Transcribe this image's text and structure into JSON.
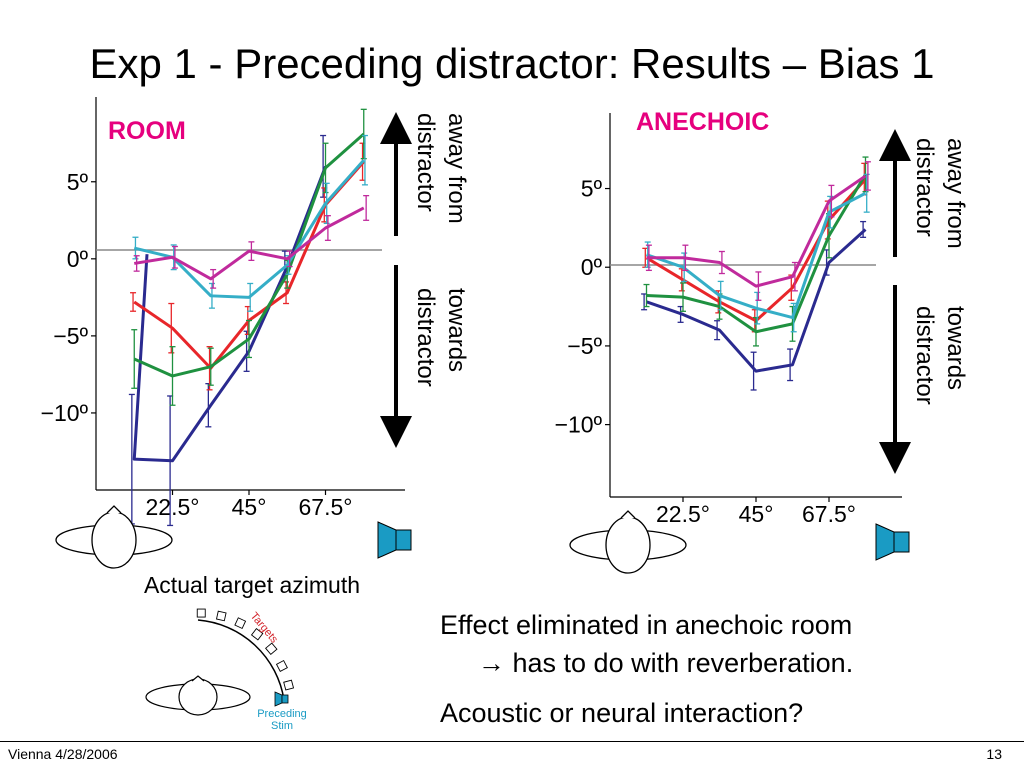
{
  "slide": {
    "title": "Exp 1 - Preceding distractor: Results – Bias 1",
    "bullets": [
      "Effect eliminated in anechoic room",
      "→ has to do with reverberation.",
      "Acoustic or neural interaction?"
    ],
    "footer_left": "Vienna 4/28/2006",
    "footer_right": "13"
  },
  "annotations": {
    "away": [
      "away from",
      "distractor"
    ],
    "towards": [
      "towards",
      "distractor"
    ],
    "xaxis_caption": "Actual target azimuth",
    "inset_targets": "Targets",
    "inset_preceding": [
      "Preceding",
      "Stim"
    ]
  },
  "colors": {
    "series": [
      "#2a2a8f",
      "#e8262a",
      "#1f9140",
      "#35aec7",
      "#c02a9c"
    ],
    "panel_title": "#e6007e",
    "speaker": "#1a9bc4",
    "targets_label": "#d2232a"
  },
  "chart_data": [
    {
      "type": "line",
      "title": "ROOM",
      "xlabel": "Actual target azimuth",
      "ylabel": "",
      "x_ticks": [
        22.5,
        45,
        67.5
      ],
      "x_tick_labels": [
        "22.5°",
        "45°",
        "67.5°"
      ],
      "y_ticks": [
        5,
        0,
        -5,
        -10
      ],
      "y_tick_labels": [
        "5º",
        "0º",
        "−5º",
        "−10º"
      ],
      "xlim": [
        0,
        90
      ],
      "ylim": [
        -15,
        10.5
      ],
      "series": [
        {
          "x": [
            15,
            11.25,
            22.5,
            33.75,
            45,
            56.25,
            67.5
          ],
          "y": [
            0.3,
            -13,
            -13.1,
            -9.5,
            -6,
            -0.5,
            6
          ],
          "err": [
            0,
            4.2,
            4.2,
            1.4,
            1.3,
            1,
            2
          ]
        },
        {
          "x": [
            11.25,
            22.5,
            33.75,
            45,
            56.25,
            67.5,
            78.75
          ],
          "y": [
            -2.8,
            -4.5,
            -7.1,
            -4,
            -2.2,
            3.5,
            6.3
          ],
          "err": [
            0.6,
            1.6,
            1.4,
            0.9,
            0.7,
            1.1,
            1.2
          ]
        },
        {
          "x": [
            11.25,
            22.5,
            33.75,
            45,
            56.25,
            67.5,
            78.75
          ],
          "y": [
            -6.5,
            -7.6,
            -7,
            -5.2,
            -1,
            5.9,
            8.1
          ],
          "err": [
            1.9,
            1.9,
            1.2,
            1.2,
            0.9,
            1.6,
            1.6
          ]
        },
        {
          "x": [
            11.25,
            22.5,
            33.75,
            45,
            56.25,
            67.5,
            78.75
          ],
          "y": [
            0.7,
            0.1,
            -2.4,
            -2.5,
            -0.4,
            3.6,
            6.4
          ],
          "err": [
            0.7,
            0.8,
            0.8,
            0.9,
            0.6,
            1.3,
            1.6
          ]
        },
        {
          "x": [
            11.25,
            22.5,
            33.75,
            45,
            56.25,
            67.5,
            78.75
          ],
          "y": [
            -0.3,
            0.1,
            -1.3,
            0.5,
            0,
            2,
            3.3
          ],
          "err": [
            0.5,
            0.7,
            0.6,
            0.6,
            0.5,
            0.8,
            0.8
          ]
        }
      ]
    },
    {
      "type": "line",
      "title": "ANECHOIC",
      "xlabel": "",
      "ylabel": "",
      "x_ticks": [
        22.5,
        45,
        67.5
      ],
      "x_tick_labels": [
        "22.5°",
        "45°",
        "67.5°"
      ],
      "y_ticks": [
        5,
        0,
        -5,
        -10
      ],
      "y_tick_labels": [
        "5º",
        "0º",
        "−5º",
        "−10º"
      ],
      "xlim": [
        0,
        90
      ],
      "ylim": [
        -14.6,
        9.8
      ],
      "series": [
        {
          "x": [
            11.25,
            22.5,
            33.75,
            45,
            56.25,
            67.5,
            78.75
          ],
          "y": [
            -2.2,
            -3,
            -4,
            -6.6,
            -6.2,
            0.3,
            2.4
          ],
          "err": [
            0.5,
            0.5,
            0.6,
            1.2,
            1,
            0.8,
            0.5
          ]
        },
        {
          "x": [
            11.25,
            22.5,
            33.75,
            45,
            56.25,
            67.5,
            78.75
          ],
          "y": [
            0.6,
            -0.8,
            -2.2,
            -3.4,
            -1.3,
            3,
            5.6
          ],
          "err": [
            0.6,
            0.7,
            0.7,
            0.7,
            0.8,
            1.2,
            1
          ]
        },
        {
          "x": [
            11.25,
            22.5,
            33.75,
            45,
            56.25,
            67.5,
            78.75
          ],
          "y": [
            -1.8,
            -1.9,
            -2.5,
            -4.1,
            -3.6,
            2,
            5.9
          ],
          "err": [
            0.7,
            0.9,
            0.8,
            0.9,
            1.1,
            1.4,
            1.1
          ]
        },
        {
          "x": [
            11.25,
            22.5,
            33.75,
            45,
            56.25,
            67.5,
            78.75
          ],
          "y": [
            0.8,
            0,
            -1.8,
            -2.6,
            -3.2,
            3.5,
            4.7
          ],
          "err": [
            0.8,
            0.9,
            0.9,
            1,
            0.9,
            1,
            1.2
          ]
        },
        {
          "x": [
            11.25,
            22.5,
            33.75,
            45,
            56.25,
            67.5,
            78.75
          ],
          "y": [
            0.6,
            0.6,
            0.3,
            -1.2,
            -0.6,
            4.2,
            5.8
          ],
          "err": [
            0.8,
            0.8,
            0.7,
            0.9,
            0.9,
            1,
            0.9
          ]
        }
      ]
    }
  ]
}
